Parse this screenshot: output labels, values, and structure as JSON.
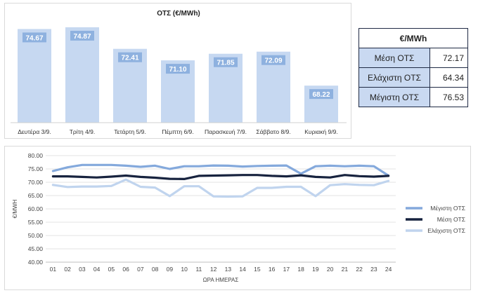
{
  "colors": {
    "bar": "#c6d8f1",
    "bar_label_bg": "#8eb1df",
    "max": "#84a9dc",
    "mean": "#17233f",
    "min": "#c0d4ee"
  },
  "chart_data": [
    {
      "type": "bar",
      "title": "ΟΤΣ (€/MWh)",
      "categories": [
        "Δευτέρα 3/9.",
        "Τρίτη 4/9.",
        "Τετάρτη 5/9.",
        "Πέμπτη 6/9.",
        "Παρασκευή 7/9.",
        "Σάββατο 8/9.",
        "Κυριακή 9/9."
      ],
      "values": [
        74.67,
        74.87,
        72.41,
        71.1,
        71.85,
        72.09,
        68.22
      ],
      "value_labels": [
        "74.67",
        "74.87",
        "72.41",
        "71.10",
        "71.85",
        "72.09",
        "68.22"
      ],
      "grid": false
    },
    {
      "type": "table",
      "header": "€/MWh",
      "rows": [
        {
          "label": "Μέση ΟΤΣ",
          "value": "72.17"
        },
        {
          "label": "Ελάχιστη ΟΤΣ",
          "value": "64.34"
        },
        {
          "label": "Μέγιστη ΟΤΣ",
          "value": "76.53"
        }
      ]
    },
    {
      "type": "line",
      "xlabel": "ΩΡΑ ΗΜΕΡΑΣ",
      "ylabel": "€/MWH",
      "ylim": [
        40,
        80
      ],
      "yticks": [
        "40.00",
        "45.00",
        "50.00",
        "55.00",
        "60.00",
        "65.00",
        "70.00",
        "75.00",
        "80.00"
      ],
      "x": [
        "01",
        "02",
        "03",
        "04",
        "05",
        "06",
        "07",
        "08",
        "09",
        "10",
        "11",
        "12",
        "13",
        "14",
        "15",
        "16",
        "17",
        "18",
        "19",
        "20",
        "21",
        "22",
        "23",
        "24"
      ],
      "legend_position": "right",
      "grid": true,
      "series": [
        {
          "name": "Μέγιστη ΟΤΣ",
          "values": [
            74.2,
            75.6,
            76.5,
            76.5,
            76.5,
            76.2,
            75.8,
            76.2,
            75.0,
            76.0,
            76.0,
            76.3,
            76.2,
            75.9,
            76.1,
            76.2,
            76.3,
            73.2,
            76.0,
            76.2,
            76.0,
            76.2,
            76.0,
            72.5
          ]
        },
        {
          "name": "Μέση ΟΤΣ",
          "values": [
            72.2,
            72.2,
            72.0,
            71.8,
            72.1,
            72.5,
            72.0,
            71.7,
            71.3,
            71.2,
            72.4,
            72.5,
            72.6,
            72.7,
            72.7,
            72.4,
            72.2,
            72.6,
            72.0,
            71.8,
            72.7,
            72.3,
            72.1,
            72.4
          ]
        },
        {
          "name": "Ελάχιστη ΟΤΣ",
          "values": [
            69.0,
            68.2,
            68.4,
            68.4,
            68.6,
            71.0,
            68.3,
            68.0,
            64.8,
            68.5,
            68.5,
            64.7,
            64.6,
            64.7,
            67.9,
            67.9,
            68.3,
            68.3,
            64.8,
            68.9,
            69.3,
            69.0,
            68.9,
            70.5
          ]
        }
      ]
    }
  ]
}
